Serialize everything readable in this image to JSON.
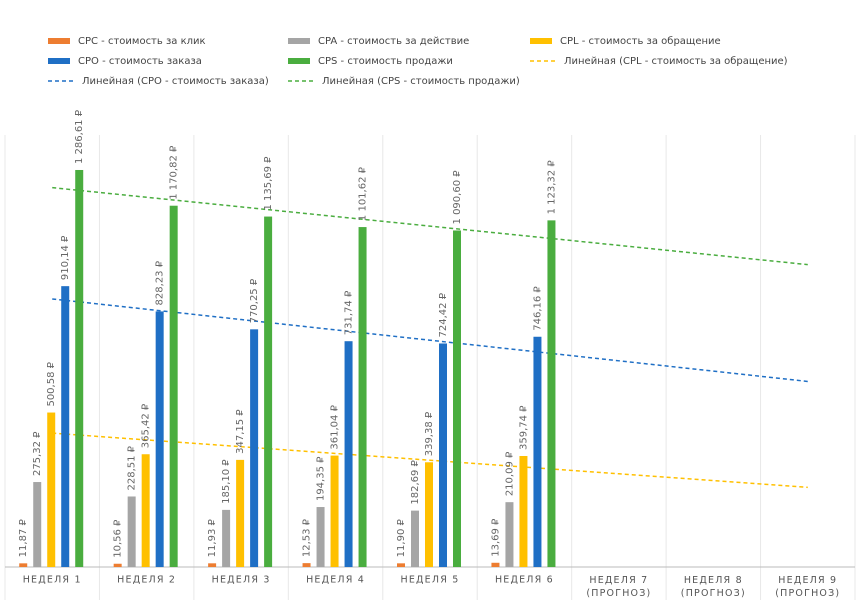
{
  "chart_data": {
    "type": "bar",
    "categories": [
      "НЕДЕЛЯ 1",
      "НЕДЕЛЯ 2",
      "НЕДЕЛЯ 3",
      "НЕДЕЛЯ 4",
      "НЕДЕЛЯ 5",
      "НЕДЕЛЯ 6",
      "НЕДЕЛЯ 7 (ПРОГНОЗ)",
      "НЕДЕЛЯ 8 (ПРОГНОЗ)",
      "НЕДЕЛЯ 9 (ПРОГНОЗ)"
    ],
    "ylim": [
      0,
      1400
    ],
    "series": [
      {
        "name": "CPC - стоимость за клик",
        "color": "#ed7d31",
        "values": [
          11.87,
          10.56,
          11.93,
          12.53,
          11.9,
          13.69,
          null,
          null,
          null
        ],
        "value_labels": [
          "11,87 ₽",
          "10,56 ₽",
          "11,93 ₽",
          "12,53 ₽",
          "11,90 ₽",
          "13,69 ₽",
          null,
          null,
          null
        ]
      },
      {
        "name": "CPA - стоимость за действие",
        "color": "#a5a5a5",
        "values": [
          275.32,
          228.51,
          185.1,
          194.35,
          182.69,
          210.09,
          null,
          null,
          null
        ],
        "value_labels": [
          "275,32 ₽",
          "228,51 ₽",
          "185,10 ₽",
          "194,35 ₽",
          "182,69 ₽",
          "210,09 ₽",
          null,
          null,
          null
        ]
      },
      {
        "name": "CPL - стоимость за обращение",
        "color": "#ffc000",
        "values": [
          500.58,
          365.42,
          347.15,
          361.04,
          339.38,
          359.74,
          null,
          null,
          null
        ],
        "value_labels": [
          "500,58 ₽",
          "365,42 ₽",
          "347,15 ₽",
          "361,04 ₽",
          "339,38 ₽",
          "359,74 ₽",
          null,
          null,
          null
        ]
      },
      {
        "name": "CPO - стоимость заказа",
        "color": "#1f6fc5",
        "values": [
          910.14,
          828.23,
          770.25,
          731.74,
          724.42,
          746.16,
          null,
          null,
          null
        ],
        "value_labels": [
          "910,14 ₽",
          "828,23 ₽",
          "770,25 ₽",
          "731,74 ₽",
          "724,42 ₽",
          "746,16 ₽",
          null,
          null,
          null
        ]
      },
      {
        "name": "CPS - стоимость продажи",
        "color": "#4aad3f",
        "values": [
          1286.61,
          1170.82,
          1135.69,
          1101.62,
          1090.6,
          1123.32,
          null,
          null,
          null
        ],
        "value_labels": [
          "1 286,61 ₽",
          "1 170,82 ₽",
          "1 135,69 ₽",
          "1 101,62 ₽",
          "1 090,60 ₽",
          "1 123,32 ₽",
          null,
          null,
          null
        ]
      },
      {
        "name": "Линейная (CPL - стоимость за обращение)",
        "type": "line",
        "dashed": true,
        "color": "#ffc000",
        "values": [
          433.8,
          411.8,
          389.9,
          367.9,
          346.0,
          324.0,
          302.1,
          280.1,
          258.1
        ]
      },
      {
        "name": "Линейная (CPO - стоимость заказа)",
        "type": "line",
        "dashed": true,
        "color": "#1f6fc5",
        "values": [
          868.7,
          835.3,
          801.9,
          768.4,
          735.0,
          701.6,
          668.2,
          634.8,
          601.3
        ]
      },
      {
        "name": "Линейная (CPS - стоимость продажи)",
        "type": "line",
        "dashed": true,
        "color": "#4aad3f",
        "values": [
          1229.4,
          1198.2,
          1167.0,
          1135.8,
          1104.7,
          1073.5,
          1042.3,
          1011.1,
          979.9
        ]
      }
    ]
  }
}
